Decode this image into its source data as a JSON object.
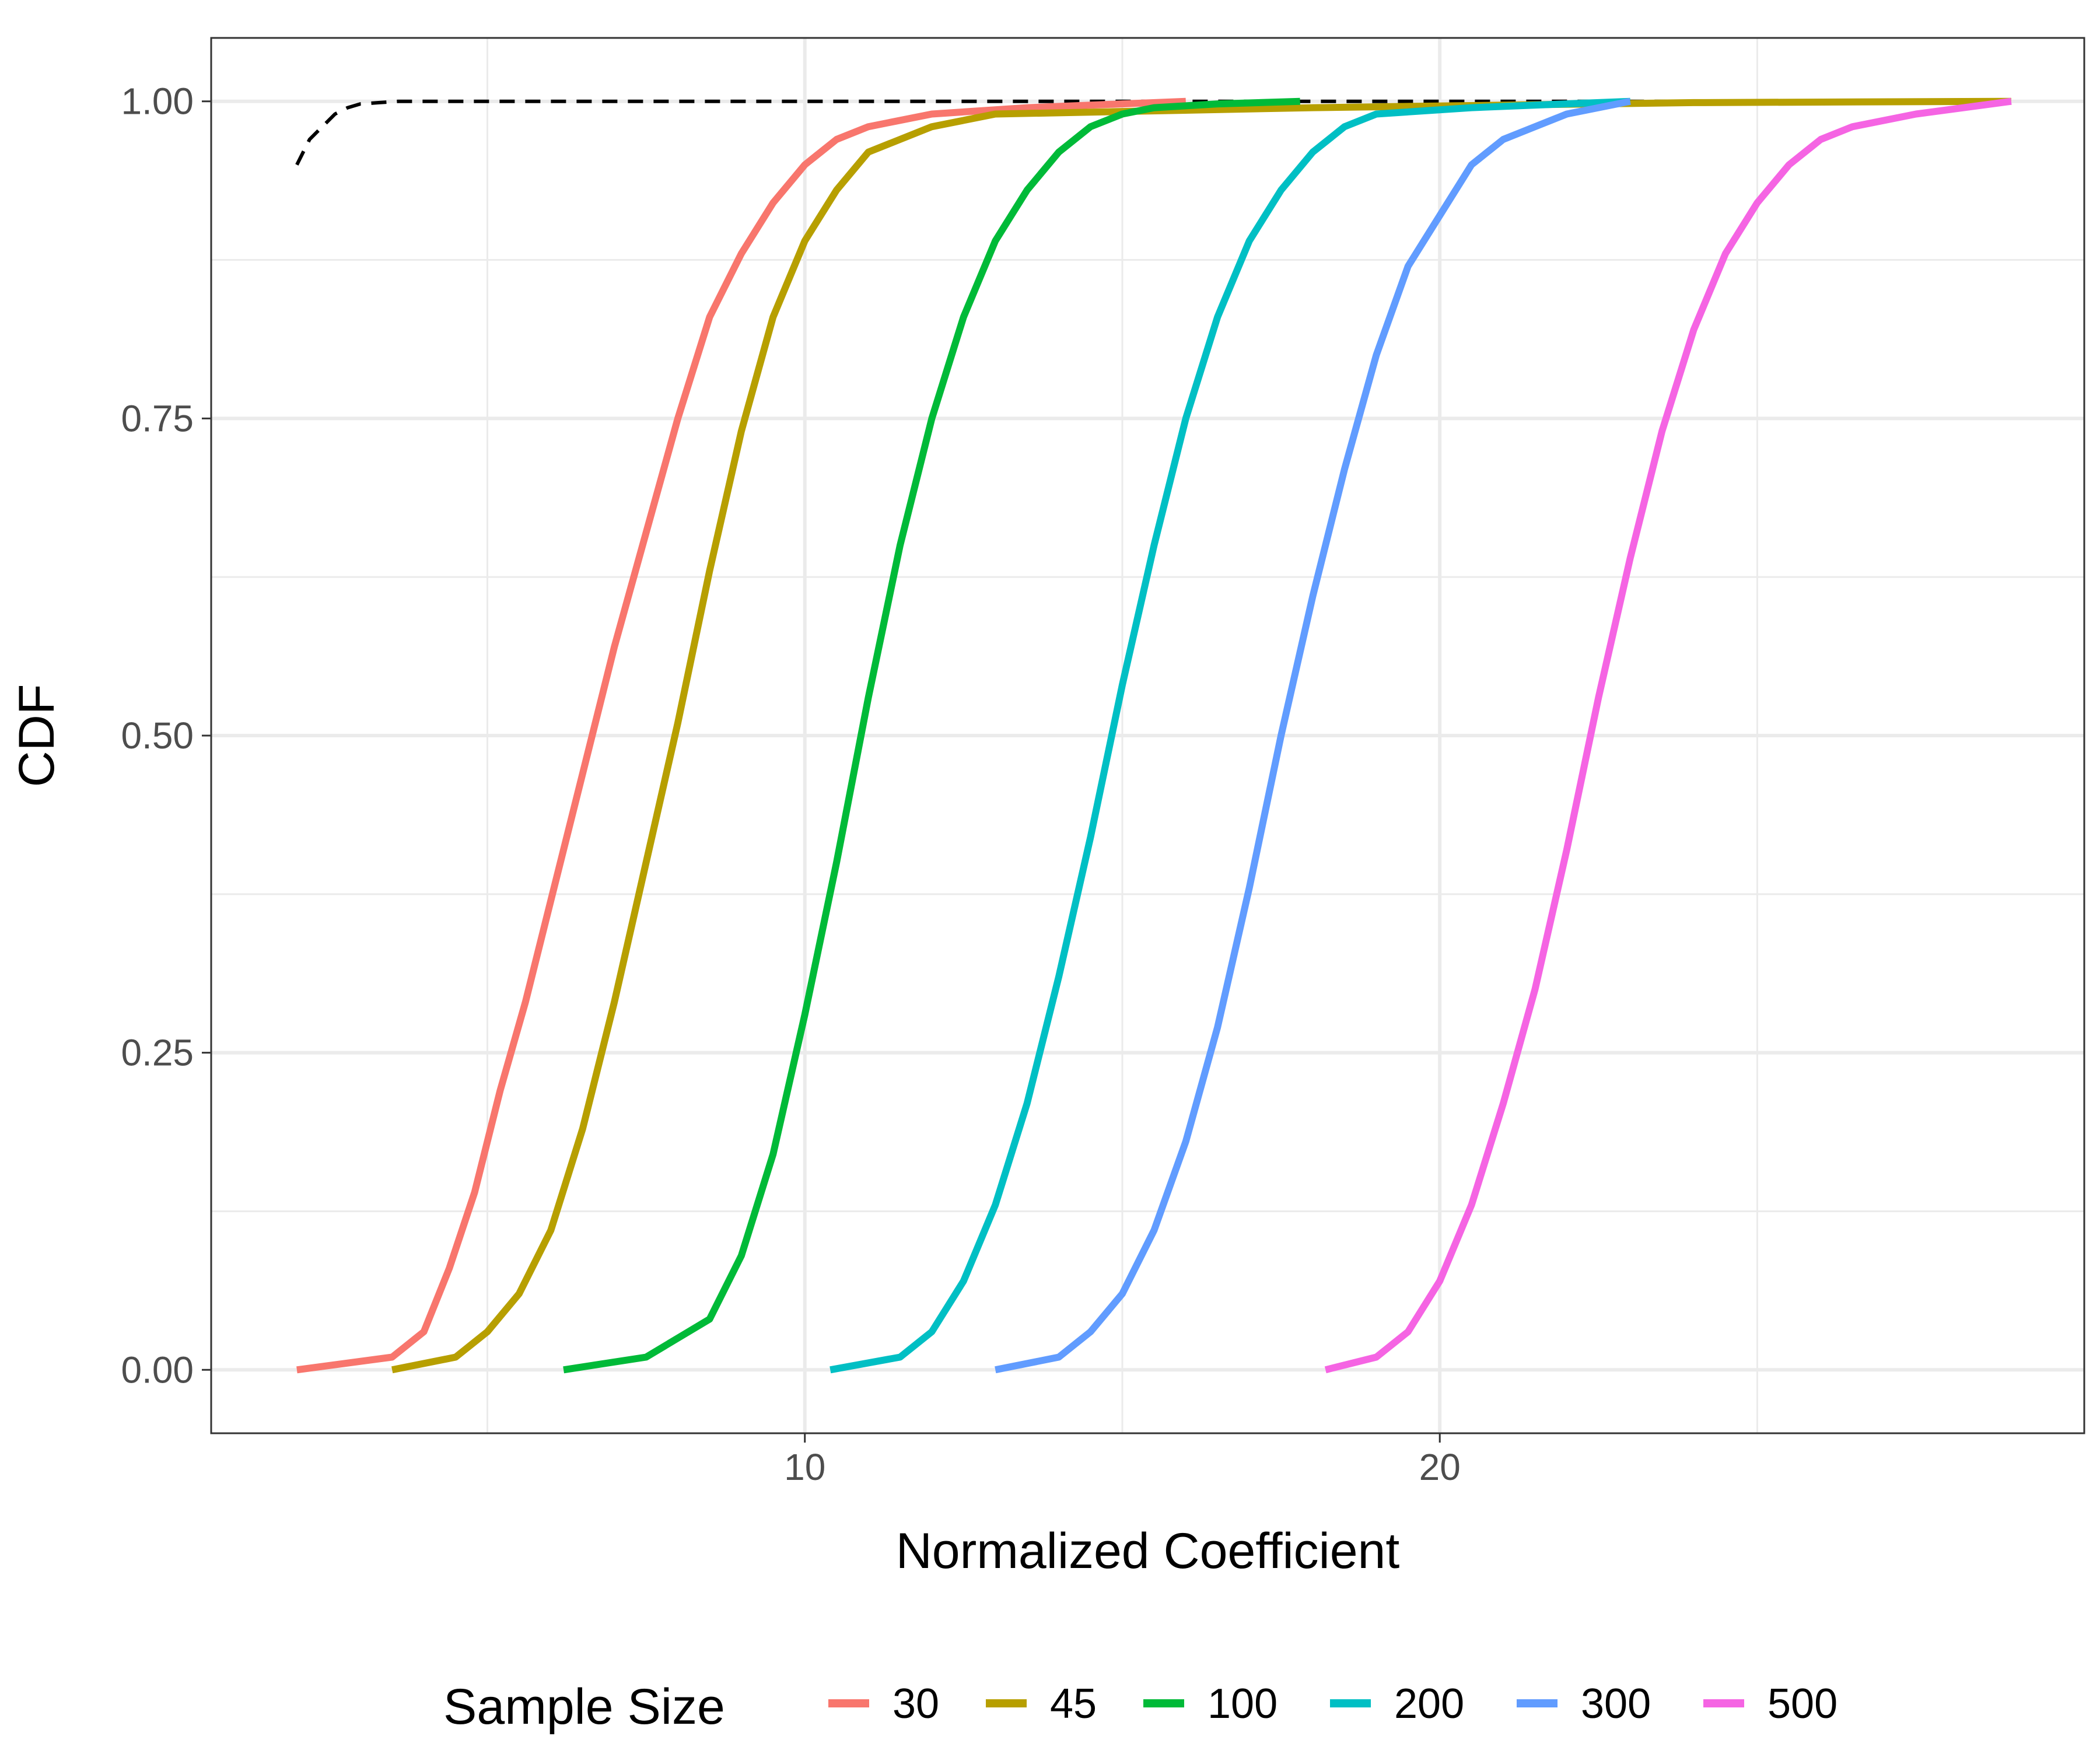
{
  "chart_data": {
    "type": "line",
    "xlabel": "Normalized Coefficient",
    "ylabel": "CDF",
    "xlim": [
      0.65,
      30.15
    ],
    "ylim": [
      -0.05,
      1.05
    ],
    "x_ticks": [
      10,
      20
    ],
    "x_tick_labels": [
      "10",
      "20"
    ],
    "y_ticks": [
      0,
      0.25,
      0.5,
      0.75,
      1
    ],
    "y_tick_labels": [
      "0.00",
      "0.25",
      "0.50",
      "0.75",
      "1.00"
    ],
    "x_minor_ticks": [
      5,
      15,
      25
    ],
    "y_minor_ticks": [
      0.125,
      0.375,
      0.625,
      0.875
    ],
    "grid": true,
    "legend": {
      "title": "Sample Size",
      "position": "bottom",
      "labels": [
        "30",
        "45",
        "100",
        "200",
        "300",
        "500"
      ]
    },
    "series": [
      {
        "name": "30",
        "color": "#F8766D",
        "x": [
          2.0,
          3.5,
          4.0,
          4.4,
          4.8,
          5.2,
          5.6,
          6.0,
          6.5,
          7.0,
          7.5,
          8.0,
          8.5,
          9.0,
          9.5,
          10.0,
          10.5,
          11.0,
          12.0,
          13.5,
          16.0
        ],
        "y": [
          0.0,
          0.01,
          0.03,
          0.08,
          0.14,
          0.22,
          0.29,
          0.37,
          0.47,
          0.57,
          0.66,
          0.75,
          0.83,
          0.88,
          0.92,
          0.95,
          0.97,
          0.98,
          0.99,
          0.995,
          1.0
        ]
      },
      {
        "name": "45",
        "color": "#B79F00",
        "x": [
          3.5,
          4.5,
          5.0,
          5.5,
          6.0,
          6.5,
          7.0,
          7.5,
          8.0,
          8.5,
          9.0,
          9.5,
          10.0,
          10.5,
          11.0,
          12.0,
          13.0,
          18.0,
          24.0,
          29.0
        ],
        "y": [
          0.0,
          0.01,
          0.03,
          0.06,
          0.11,
          0.19,
          0.29,
          0.4,
          0.51,
          0.63,
          0.74,
          0.83,
          0.89,
          0.93,
          0.96,
          0.98,
          0.99,
          0.995,
          0.999,
          1.0
        ]
      },
      {
        "name": "100",
        "color": "#00BA38",
        "x": [
          6.2,
          7.5,
          8.5,
          9.0,
          9.5,
          10.0,
          10.5,
          11.0,
          11.5,
          12.0,
          12.5,
          13.0,
          13.5,
          14.0,
          14.5,
          15.0,
          15.5,
          16.5,
          17.8
        ],
        "y": [
          0.0,
          0.01,
          0.04,
          0.09,
          0.17,
          0.28,
          0.4,
          0.53,
          0.65,
          0.75,
          0.83,
          0.89,
          0.93,
          0.96,
          0.98,
          0.99,
          0.995,
          0.998,
          1.0
        ]
      },
      {
        "name": "200",
        "color": "#00BFC4",
        "x": [
          10.4,
          11.5,
          12.0,
          12.5,
          13.0,
          13.5,
          14.0,
          14.5,
          15.0,
          15.5,
          16.0,
          16.5,
          17.0,
          17.5,
          18.0,
          18.5,
          19.0,
          20.5,
          23.0
        ],
        "y": [
          0.0,
          0.01,
          0.03,
          0.07,
          0.13,
          0.21,
          0.31,
          0.42,
          0.54,
          0.65,
          0.75,
          0.83,
          0.89,
          0.93,
          0.96,
          0.98,
          0.99,
          0.995,
          1.0
        ]
      },
      {
        "name": "300",
        "color": "#619CFF",
        "x": [
          13.0,
          14.0,
          14.5,
          15.0,
          15.5,
          16.0,
          16.5,
          17.0,
          17.5,
          18.0,
          18.5,
          19.0,
          19.5,
          20.0,
          20.5,
          21.0,
          21.5,
          22.0,
          23.0
        ],
        "y": [
          0.0,
          0.01,
          0.03,
          0.06,
          0.11,
          0.18,
          0.27,
          0.38,
          0.5,
          0.61,
          0.71,
          0.8,
          0.87,
          0.91,
          0.95,
          0.97,
          0.98,
          0.99,
          1.0
        ]
      },
      {
        "name": "500",
        "color": "#F564E3",
        "x": [
          18.2,
          19.0,
          19.5,
          20.0,
          20.5,
          21.0,
          21.5,
          22.0,
          22.5,
          23.0,
          23.5,
          24.0,
          24.5,
          25.0,
          25.5,
          26.0,
          26.5,
          27.5,
          29.0
        ],
        "y": [
          0.0,
          0.01,
          0.03,
          0.07,
          0.13,
          0.21,
          0.3,
          0.41,
          0.53,
          0.64,
          0.74,
          0.82,
          0.88,
          0.92,
          0.95,
          0.97,
          0.98,
          0.99,
          1.0
        ]
      }
    ],
    "reference_line": {
      "style": "dashed",
      "color": "#000000",
      "x": [
        2.0,
        2.2,
        2.4,
        2.6,
        2.8,
        3.0,
        3.3,
        3.6,
        4.0,
        5.0,
        8.0,
        15.0,
        22.0,
        29.0
      ],
      "y": [
        0.95,
        0.97,
        0.98,
        0.99,
        0.995,
        0.998,
        0.999,
        1.0,
        1.0,
        1.0,
        1.0,
        1.0,
        1.0,
        1.0
      ]
    }
  }
}
